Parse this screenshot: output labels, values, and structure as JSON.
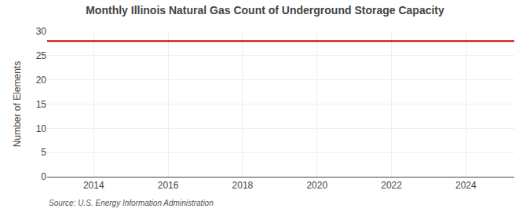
{
  "chart_data": {
    "type": "hline",
    "title": "Monthly Illinois Natural Gas Count of Underground Storage Capacity",
    "ylabel": "Number of Elements",
    "annotations": [
      "Source: U.S. Energy Information Administration"
    ],
    "values": [
      28
    ],
    "color": "#cc0000",
    "xlim": [
      2012.75,
      2025.3
    ],
    "xticks": [
      2014,
      2016,
      2018,
      2020,
      2022,
      2024
    ],
    "ylim": [
      0,
      30
    ],
    "yticks": [
      0,
      5,
      10,
      15,
      20,
      25,
      30
    ],
    "grid": true
  }
}
